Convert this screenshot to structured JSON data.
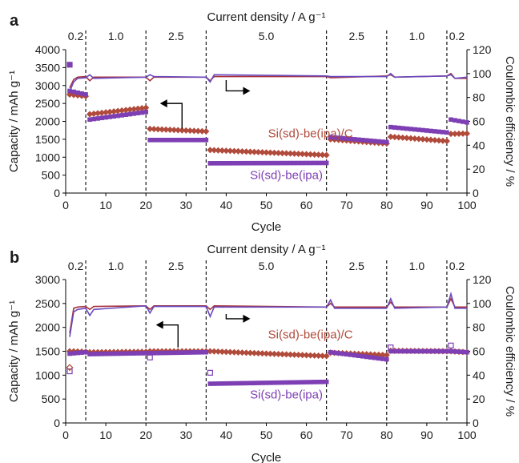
{
  "colors": {
    "si_c": "#b04a3a",
    "si": "#7d3fb3",
    "si_c_ce": "#a8323e",
    "si_ce": "#6a4bbf",
    "axis": "#000000"
  },
  "chart_data": [
    {
      "panel": "a",
      "type": "scatter",
      "top_label": "Current density / A g⁻¹",
      "xlabel": "Cycle",
      "ylabel_left": "Capacity / mAh g⁻¹",
      "ylabel_right": "Coulombic efficiency / %",
      "xlim": [
        0,
        100
      ],
      "ylim_left": [
        0,
        4000
      ],
      "ylim_right": [
        0,
        120
      ],
      "x_ticks": [
        "0",
        "10",
        "20",
        "30",
        "40",
        "50",
        "60",
        "70",
        "80",
        "90",
        "100"
      ],
      "y_ticks_left": [
        "0",
        "500",
        "1000",
        "1500",
        "2000",
        "2500",
        "3000",
        "3500",
        "4000"
      ],
      "y_ticks_right": [
        "0",
        "20",
        "40",
        "60",
        "80",
        "100",
        "120"
      ],
      "rate_dividers": [
        5,
        20,
        35,
        65,
        80,
        95
      ],
      "rate_labels": [
        {
          "text": "0.2",
          "x": 2.5
        },
        {
          "text": "1.0",
          "x": 12.5
        },
        {
          "text": "2.5",
          "x": 27.5
        },
        {
          "text": "5.0",
          "x": 50
        },
        {
          "text": "2.5",
          "x": 72.5
        },
        {
          "text": "1.0",
          "x": 87.5
        },
        {
          "text": "0.2",
          "x": 97.5
        }
      ],
      "annotations": {
        "si_c_label": {
          "text": "Si(sd)-be(ipa)/C",
          "x": 61,
          "y": 1550
        },
        "si_label": {
          "text": "Si(sd)-be(ipa)",
          "x": 55,
          "y": 390
        },
        "left_arrow": {
          "x_from": 29,
          "x_to": 23.5,
          "y_from": 1800,
          "y_vertex": 2500
        },
        "right_arrow": {
          "x_from": 40,
          "x_to": 46,
          "y_from": 3150,
          "y_vertex": 2850
        }
      },
      "series": [
        {
          "name": "Si(sd)-be(ipa)/C",
          "kind": "capacity",
          "segments": [
            [
              1,
              5,
              2750,
              2700
            ],
            [
              6,
              20,
              2200,
              2380
            ],
            [
              21,
              35,
              1790,
              1720
            ],
            [
              36,
              65,
              1200,
              1060
            ],
            [
              66,
              80,
              1500,
              1380
            ],
            [
              81,
              95,
              1570,
              1450
            ],
            [
              96,
              100,
              1650,
              1660
            ]
          ]
        },
        {
          "name": "Si(sd)-be(ipa)",
          "kind": "capacity",
          "segments": [
            [
              1,
              5,
              2850,
              2750
            ],
            [
              6,
              20,
              2050,
              2260
            ],
            [
              21,
              35,
              1480,
              1480
            ],
            [
              36,
              65,
              830,
              840
            ],
            [
              66,
              80,
              1560,
              1420
            ],
            [
              81,
              95,
              1840,
              1690
            ],
            [
              96,
              100,
              2050,
              1970
            ]
          ]
        },
        {
          "name": "Si(sd)-be(ipa)/C",
          "kind": "ce",
          "points": [
            [
              1,
              88
            ],
            [
              2,
              95
            ],
            [
              3,
              97
            ],
            [
              5,
              97.5
            ],
            [
              6,
              94
            ],
            [
              7,
              97
            ],
            [
              20,
              97
            ],
            [
              21,
              94
            ],
            [
              22,
              97
            ],
            [
              35,
              97
            ],
            [
              36,
              94
            ],
            [
              37,
              97.5
            ],
            [
              65,
              97.5
            ],
            [
              66,
              96.5
            ],
            [
              80,
              98
            ],
            [
              81,
              99
            ],
            [
              82,
              97
            ],
            [
              95,
              98
            ],
            [
              96,
              100
            ],
            [
              97,
              96
            ],
            [
              100,
              96
            ]
          ]
        },
        {
          "name": "Si(sd)-be(ipa)",
          "kind": "ce",
          "points": [
            [
              1,
              85
            ],
            [
              2,
              93
            ],
            [
              3,
              96
            ],
            [
              5,
              96.5
            ],
            [
              6,
              99
            ],
            [
              7,
              96
            ],
            [
              20,
              97
            ],
            [
              21,
              99
            ],
            [
              22,
              97.5
            ],
            [
              35,
              97
            ],
            [
              36,
              93
            ],
            [
              37,
              99
            ],
            [
              65,
              98
            ],
            [
              66,
              97.5
            ],
            [
              80,
              97.5
            ],
            [
              81,
              100
            ],
            [
              82,
              97
            ],
            [
              95,
              98
            ],
            [
              96,
              99
            ],
            [
              97,
              96
            ],
            [
              100,
              97
            ]
          ]
        }
      ],
      "extra_points": [
        {
          "series": "Si(sd)-be(ipa)",
          "x": 1,
          "y": 3580
        }
      ]
    },
    {
      "panel": "b",
      "type": "scatter",
      "top_label": "Current density / A g⁻¹",
      "xlabel": "Cycle",
      "ylabel_left": "Capacity / mAh g⁻¹",
      "ylabel_right": "Coulombic efficiency / %",
      "xlim": [
        0,
        100
      ],
      "ylim_left": [
        0,
        3000
      ],
      "ylim_right": [
        0,
        120
      ],
      "x_ticks": [
        "0",
        "10",
        "20",
        "30",
        "40",
        "50",
        "60",
        "70",
        "80",
        "90",
        "100"
      ],
      "y_ticks_left": [
        "0",
        "500",
        "1000",
        "1500",
        "2000",
        "2500",
        "3000"
      ],
      "y_ticks_right": [
        "0",
        "20",
        "40",
        "60",
        "80",
        "100",
        "120"
      ],
      "rate_dividers": [
        5,
        20,
        35,
        65,
        80,
        95
      ],
      "rate_labels": [
        {
          "text": "0.2",
          "x": 2.5
        },
        {
          "text": "1.0",
          "x": 12.5
        },
        {
          "text": "2.5",
          "x": 27.5
        },
        {
          "text": "5.0",
          "x": 50
        },
        {
          "text": "2.5",
          "x": 72.5
        },
        {
          "text": "1.0",
          "x": 87.5
        },
        {
          "text": "0.2",
          "x": 97.5
        }
      ],
      "annotations": {
        "si_c_label": {
          "text": "Si(sd)-be(ipa)/C",
          "x": 61,
          "y": 1770
        },
        "si_label": {
          "text": "Si(sd)-be(ipa)",
          "x": 55,
          "y": 510
        },
        "left_arrow": {
          "x_from": 28,
          "x_to": 22.5,
          "y_from": 1580,
          "y_vertex": 2050
        },
        "right_arrow": {
          "x_from": 40,
          "x_to": 46,
          "y_from": 2280,
          "y_vertex": 2180
        }
      },
      "series": [
        {
          "name": "Si(sd)-be(ipa)/C",
          "kind": "capacity",
          "segments": [
            [
              1,
              5,
              1500,
              1490
            ],
            [
              6,
              20,
              1480,
              1490
            ],
            [
              21,
              35,
              1500,
              1500
            ],
            [
              36,
              65,
              1500,
              1400
            ],
            [
              66,
              80,
              1470,
              1420
            ],
            [
              81,
              95,
              1510,
              1500
            ],
            [
              96,
              100,
              1500,
              1480
            ]
          ]
        },
        {
          "name": "Si(sd)-be(ipa)",
          "kind": "capacity",
          "segments": [
            [
              1,
              5,
              1450,
              1480
            ],
            [
              6,
              20,
              1440,
              1460
            ],
            [
              21,
              35,
              1460,
              1480
            ],
            [
              36,
              65,
              820,
              860
            ],
            [
              66,
              80,
              1480,
              1330
            ],
            [
              81,
              95,
              1500,
              1500
            ],
            [
              96,
              100,
              1500,
              1480
            ]
          ]
        },
        {
          "name": "Si(sd)-be(ipa)/C",
          "kind": "ce",
          "points": [
            [
              1,
              75
            ],
            [
              2,
              96
            ],
            [
              3,
              97
            ],
            [
              5,
              97.5
            ],
            [
              6,
              95
            ],
            [
              7,
              97.5
            ],
            [
              20,
              98
            ],
            [
              21,
              95
            ],
            [
              22,
              98
            ],
            [
              35,
              98
            ],
            [
              36,
              95
            ],
            [
              37,
              98
            ],
            [
              65,
              97
            ],
            [
              66,
              100
            ],
            [
              67,
              97
            ],
            [
              80,
              97
            ],
            [
              81,
              101
            ],
            [
              82,
              97
            ],
            [
              95,
              97
            ],
            [
              96,
              104
            ],
            [
              97,
              97
            ],
            [
              100,
              97
            ]
          ]
        },
        {
          "name": "Si(sd)-be(ipa)",
          "kind": "ce",
          "points": [
            [
              1,
              72
            ],
            [
              2,
              93
            ],
            [
              3,
              95
            ],
            [
              5,
              96
            ],
            [
              6,
              90
            ],
            [
              7,
              95
            ],
            [
              20,
              98
            ],
            [
              21,
              92
            ],
            [
              22,
              97.5
            ],
            [
              35,
              97.5
            ],
            [
              36,
              89
            ],
            [
              37,
              97
            ],
            [
              65,
              97
            ],
            [
              66,
              103
            ],
            [
              67,
              96
            ],
            [
              80,
              96
            ],
            [
              81,
              104
            ],
            [
              82,
              96
            ],
            [
              95,
              97
            ],
            [
              96,
              108
            ],
            [
              97,
              96
            ],
            [
              100,
              96
            ]
          ]
        }
      ],
      "extra_points": [
        {
          "series": "Si(sd)-be(ipa)",
          "x": 1,
          "y": 1080
        },
        {
          "series": "Si(sd)-be(ipa)/C",
          "x": 1,
          "y": 1160
        },
        {
          "series": "Si(sd)-be(ipa)",
          "x": 21,
          "y": 1370
        },
        {
          "series": "Si(sd)-be(ipa)",
          "x": 81,
          "y": 1580
        },
        {
          "series": "Si(sd)-be(ipa)",
          "x": 96,
          "y": 1620
        },
        {
          "series": "Si(sd)-be(ipa)",
          "x": 36,
          "y": 1050
        }
      ]
    }
  ]
}
